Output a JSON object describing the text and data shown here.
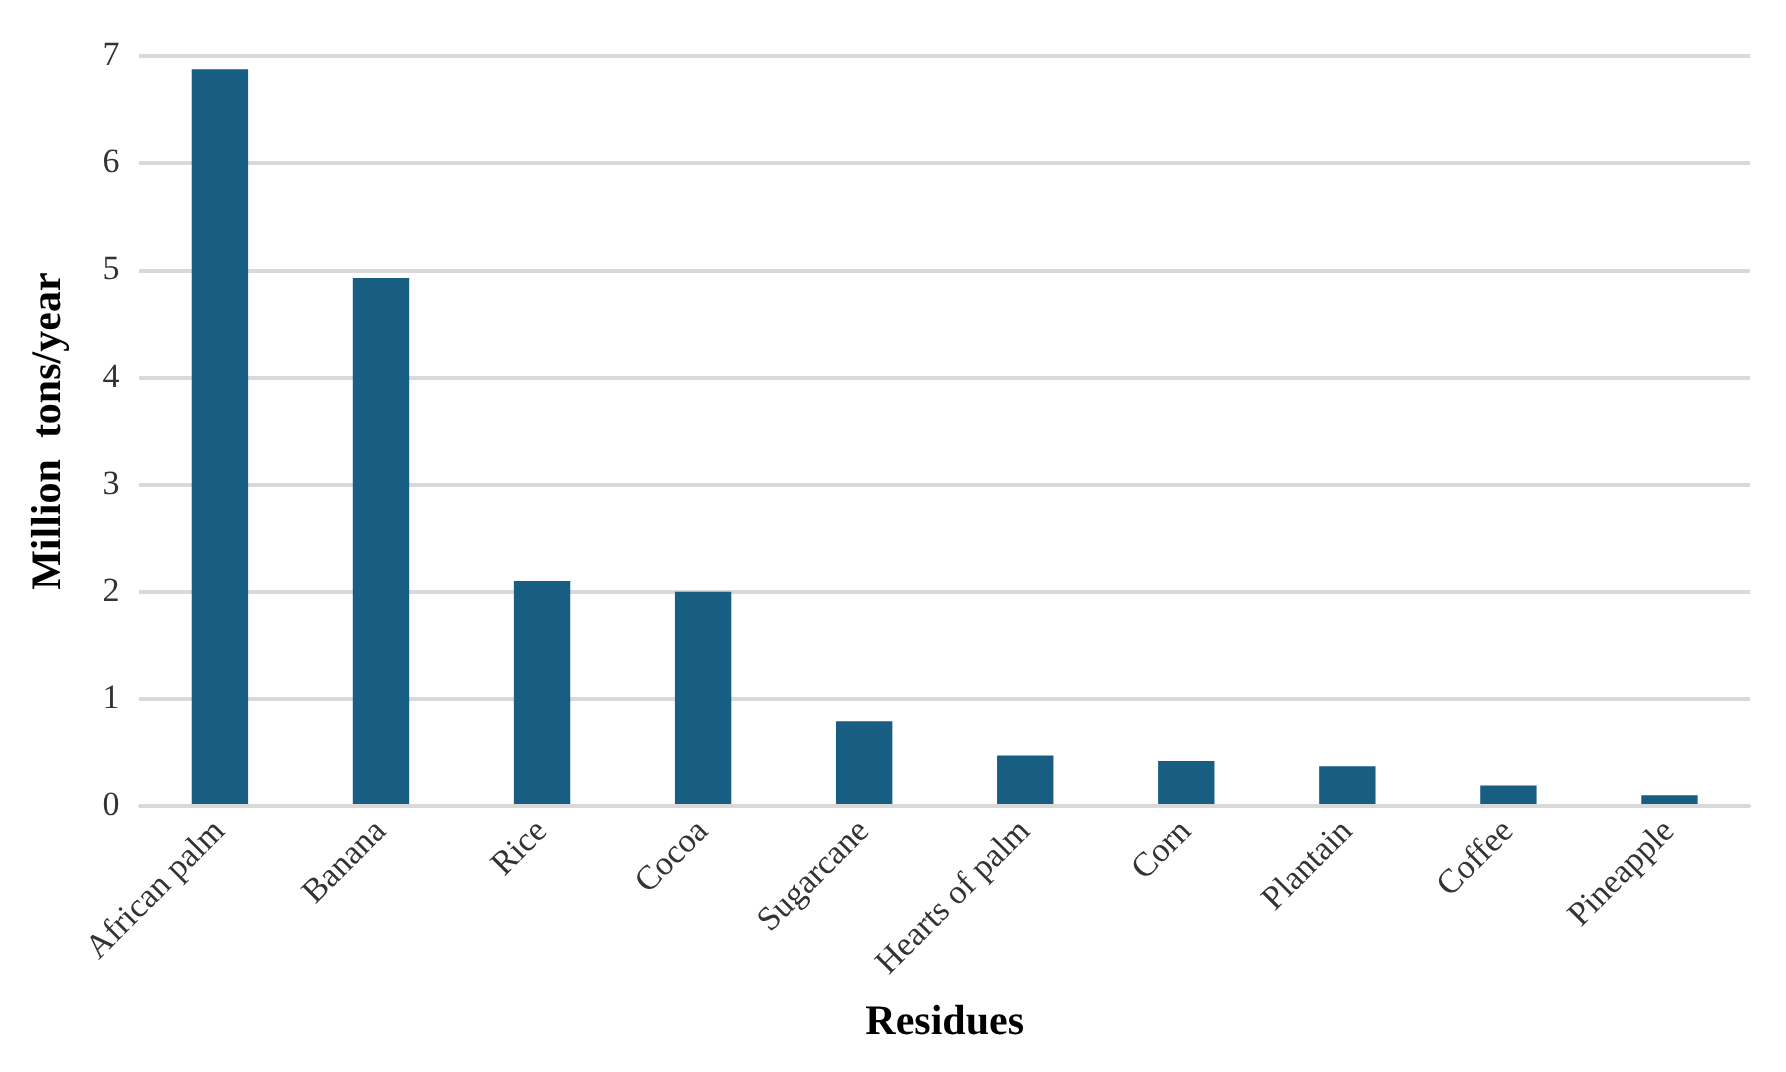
{
  "chart_data": {
    "type": "bar",
    "xlabel": "Residues",
    "ylabel": "Million  tons/year",
    "categories": [
      "African palm",
      "Banana",
      "Rice",
      "Cocoa",
      "Sugarcane",
      "Hearts of palm",
      "Corn",
      "Plantain",
      "Coffee",
      "Pineapple"
    ],
    "values": [
      6.88,
      4.93,
      2.1,
      2.0,
      0.79,
      0.47,
      0.42,
      0.37,
      0.19,
      0.1
    ],
    "color": "#175e82",
    "ylim": [
      0,
      7
    ],
    "yticks": [
      0,
      1,
      2,
      3,
      4,
      5,
      6,
      7
    ],
    "grid": "y",
    "legend": false
  }
}
